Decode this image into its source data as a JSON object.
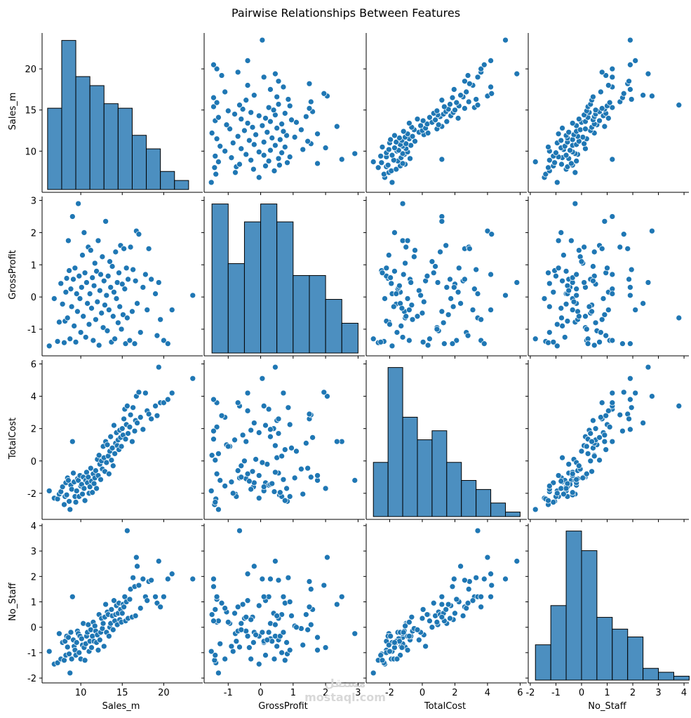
{
  "chart_data": {
    "type": "scatter",
    "title": "Pairwise Relationships Between Features",
    "variables": [
      "Sales_m",
      "GrossProfit",
      "TotalCost",
      "No_Staff"
    ],
    "ticks": {
      "Sales_m": [
        10,
        15,
        20
      ],
      "GrossProfit": [
        -1,
        0,
        1,
        2,
        3
      ],
      "TotalCost": [
        -2,
        0,
        2,
        4,
        6
      ],
      "No_Staff": [
        -2,
        -1,
        0,
        1,
        2,
        3,
        4
      ]
    },
    "data": [
      [
        6.2,
        -1.52,
        -1.85,
        -0.95
      ],
      [
        6.8,
        -0.05,
        -2.3,
        -1.45
      ],
      [
        7.2,
        -1.38,
        -2.35,
        -1.4
      ],
      [
        7.4,
        -0.78,
        -2.05,
        -0.25
      ],
      [
        7.6,
        0.42,
        -1.9,
        -1.25
      ],
      [
        7.8,
        -0.22,
        -1.6,
        -0.6
      ],
      [
        8.0,
        -1.42,
        -2.7,
        -1.3
      ],
      [
        8.1,
        -0.75,
        -2.2,
        -0.55
      ],
      [
        8.2,
        0.15,
        -1.35,
        -1.1
      ],
      [
        8.3,
        0.58,
        -2.1,
        -0.35
      ],
      [
        8.4,
        -0.65,
        -1.05,
        -0.78
      ],
      [
        8.5,
        1.75,
        -1.2,
        -0.4
      ],
      [
        8.6,
        0.82,
        -2.5,
        -1.05
      ],
      [
        8.7,
        -1.3,
        -3.0,
        -1.8
      ],
      [
        8.8,
        0.25,
        -1.5,
        -0.2
      ],
      [
        8.9,
        -0.3,
        -1.75,
        -1.25
      ],
      [
        9.0,
        2.5,
        1.2,
        1.2
      ],
      [
        9.1,
        0.55,
        -0.75,
        -0.5
      ],
      [
        9.2,
        -0.9,
        -1.3,
        -0.75
      ],
      [
        9.3,
        0.9,
        -2.2,
        -0.9
      ],
      [
        9.4,
        -1.4,
        -2.55,
        -1.1
      ],
      [
        9.5,
        0.1,
        -1.85,
        -0.6
      ],
      [
        9.6,
        -0.45,
        -1.1,
        -0.15
      ],
      [
        9.7,
        2.9,
        -1.2,
        -0.25
      ],
      [
        9.8,
        0.65,
        -2.2,
        -1.0
      ],
      [
        9.9,
        -0.05,
        -0.9,
        -0.35
      ],
      [
        10.0,
        -1.1,
        -1.55,
        -1.25
      ],
      [
        10.1,
        0.3,
        -1.45,
        -0.45
      ],
      [
        10.2,
        1.3,
        -2.05,
        -0.7
      ],
      [
        10.3,
        -0.6,
        -1.0,
        0.15
      ],
      [
        10.4,
        2.0,
        -1.7,
        -0.8
      ],
      [
        10.5,
        0.75,
        -2.45,
        -1.3
      ],
      [
        10.6,
        -1.25,
        -1.2,
        -0.65
      ],
      [
        10.7,
        0.45,
        -0.7,
        -0.35
      ],
      [
        10.8,
        -0.2,
        -1.35,
        -0.2
      ],
      [
        10.9,
        1.55,
        -1.0,
        0.1
      ],
      [
        11.0,
        -0.85,
        -2.0,
        -0.95
      ],
      [
        11.1,
        0.1,
        -1.6,
        -0.55
      ],
      [
        11.2,
        1.45,
        -0.45,
        -0.1
      ],
      [
        11.3,
        -0.35,
        -1.25,
        -0.8
      ],
      [
        11.4,
        0.6,
        -1.95,
        -0.35
      ],
      [
        11.5,
        -1.35,
        -0.8,
        0.2
      ],
      [
        11.6,
        0.35,
        -1.4,
        -0.55
      ],
      [
        11.7,
        1.05,
        -1.05,
        0.05
      ],
      [
        11.8,
        -0.7,
        -0.6,
        -0.15
      ],
      [
        11.9,
        0.8,
        -1.7,
        -0.6
      ],
      [
        12.0,
        -0.15,
        0.1,
        -0.3
      ],
      [
        12.1,
        1.75,
        -0.9,
        -0.9
      ],
      [
        12.2,
        -1.5,
        0.35,
        0.5
      ],
      [
        12.3,
        0.2,
        -0.2,
        -0.5
      ],
      [
        12.4,
        0.7,
        -1.15,
        -0.2
      ],
      [
        12.5,
        -0.5,
        0.0,
        0.35
      ],
      [
        12.6,
        1.25,
        -0.5,
        -0.05
      ],
      [
        12.7,
        -0.95,
        0.9,
        0.15
      ],
      [
        12.8,
        0.5,
        0.2,
        -0.75
      ],
      [
        12.9,
        -0.25,
        -0.65,
        0.4
      ],
      [
        13.0,
        2.35,
        1.2,
        0.9
      ],
      [
        13.1,
        0.05,
        -0.1,
        -0.2
      ],
      [
        13.2,
        -1.05,
        1.0,
        0.6
      ],
      [
        13.3,
        0.65,
        0.3,
        0.5
      ],
      [
        13.4,
        -0.4,
        -0.8,
        -0.35
      ],
      [
        13.5,
        1.1,
        0.6,
        0.0
      ],
      [
        13.6,
        0.3,
        1.5,
        0.15
      ],
      [
        13.7,
        -1.4,
        0.05,
        0.7
      ],
      [
        13.8,
        0.95,
        0.8,
        0.45
      ],
      [
        13.9,
        -0.6,
        -0.3,
        -0.1
      ],
      [
        14.0,
        0.15,
        2.2,
        1.05
      ],
      [
        14.1,
        -1.3,
        0.45,
        0.25
      ],
      [
        14.2,
        1.4,
        1.1,
        0.5
      ],
      [
        14.3,
        -0.05,
        1.75,
        0.85
      ],
      [
        14.4,
        0.45,
        0.95,
        0.1
      ],
      [
        14.5,
        -0.8,
        1.3,
        0.55
      ],
      [
        14.6,
        0.75,
        0.7,
        0.95
      ],
      [
        14.7,
        -0.3,
        1.9,
        0.3
      ],
      [
        14.8,
        1.6,
        1.45,
        0.7
      ],
      [
        14.9,
        -1.0,
        0.9,
        0.2
      ],
      [
        15.0,
        0.4,
        2.0,
        0.55
      ],
      [
        15.1,
        -0.55,
        1.6,
        0.9
      ],
      [
        15.2,
        1.5,
        2.6,
        0.8
      ],
      [
        15.3,
        0.25,
        3.2,
        1.2
      ],
      [
        15.4,
        -1.45,
        1.35,
        0.25
      ],
      [
        15.5,
        0.9,
        2.25,
        1.0
      ],
      [
        15.6,
        -0.65,
        3.4,
        3.8
      ],
      [
        15.7,
        0.55,
        1.7,
        0.35
      ],
      [
        15.9,
        -1.35,
        2.1,
        1.1
      ],
      [
        16.0,
        1.55,
        2.85,
        1.5
      ],
      [
        16.2,
        -0.45,
        1.2,
        0.4
      ],
      [
        16.3,
        0.85,
        3.3,
        1.95
      ],
      [
        16.5,
        -1.45,
        1.85,
        1.6
      ],
      [
        16.6,
        0.5,
        2.5,
        0.45
      ],
      [
        16.7,
        2.05,
        4.0,
        2.75
      ],
      [
        16.8,
        -0.2,
        2.35,
        2.4
      ],
      [
        17.0,
        1.95,
        4.25,
        1.65
      ],
      [
        17.2,
        -1.1,
        2.7,
        0.75
      ],
      [
        17.5,
        0.3,
        1.95,
        1.9
      ],
      [
        17.8,
        0.7,
        4.2,
        1.2
      ],
      [
        18.0,
        -0.4,
        3.1,
        1.05
      ],
      [
        18.2,
        1.5,
        2.9,
        1.8
      ],
      [
        18.5,
        0.55,
        2.6,
        1.85
      ],
      [
        19.0,
        0.1,
        3.4,
        1.2
      ],
      [
        19.2,
        -1.2,
        2.8,
        0.95
      ],
      [
        19.4,
        0.45,
        5.8,
        2.6
      ],
      [
        19.6,
        -0.7,
        3.6,
        0.8
      ],
      [
        20.0,
        -1.35,
        3.6,
        1.2
      ],
      [
        20.5,
        -1.45,
        3.8,
        1.9
      ],
      [
        21.0,
        -0.4,
        4.2,
        2.1
      ],
      [
        23.5,
        0.05,
        5.1,
        1.9
      ]
    ],
    "histograms": {
      "Sales_m": {
        "edges": [
          6.0,
          7.7,
          9.4,
          11.1,
          12.8,
          14.5,
          16.2,
          17.9,
          19.6,
          21.3,
          23.0
        ],
        "counts": [
          18,
          33,
          25,
          23,
          19,
          18,
          12,
          9,
          4,
          2
        ]
      },
      "GrossProfit": {
        "edges": [
          -1.5,
          -1.0,
          -0.5,
          0.0,
          0.5,
          1.0,
          1.5,
          2.0,
          2.5,
          3.0
        ],
        "counts": [
          25,
          15,
          22,
          25,
          22,
          13,
          13,
          9,
          5
        ]
      },
      "TotalCost": {
        "edges": [
          -3.0,
          -2.1,
          -1.2,
          -0.3,
          0.6,
          1.5,
          2.4,
          3.3,
          4.2,
          5.1,
          6.0
        ],
        "counts": [
          12,
          33,
          22,
          17,
          19,
          12,
          8,
          6,
          3,
          1
        ]
      },
      "No_Staff": {
        "edges": [
          -1.8,
          -1.2,
          -0.6,
          0.0,
          0.6,
          1.2,
          1.8,
          2.4,
          3.0,
          3.6,
          4.2
        ],
        "counts": [
          9,
          19,
          38,
          33,
          16,
          13,
          11,
          3,
          2,
          1
        ]
      }
    }
  },
  "watermark": {
    "line1": "مستقل",
    "line2": "mostaql.com"
  }
}
